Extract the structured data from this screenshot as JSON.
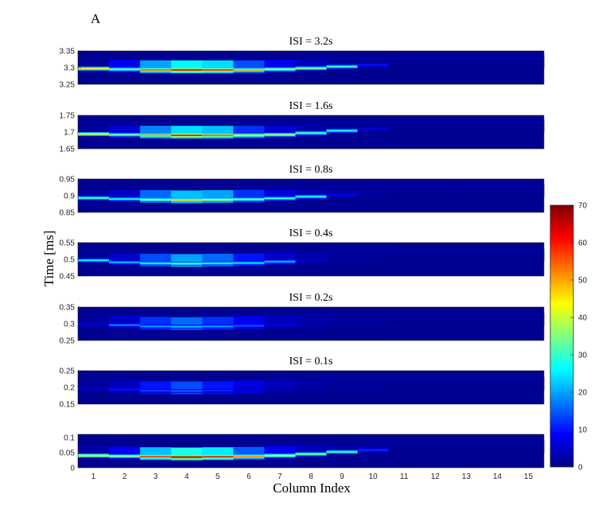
{
  "figure_label": "A",
  "chart_data": {
    "type": "heatmap",
    "xlabel": "Column Index",
    "ylabel": "Time [ms]",
    "columns": [
      1,
      2,
      3,
      4,
      5,
      6,
      7,
      8,
      9,
      10,
      11,
      12,
      13,
      14,
      15
    ],
    "colormap": "jet",
    "colorbar": {
      "min": 0,
      "max": 70,
      "ticks": [
        "0",
        "10",
        "20",
        "30",
        "40",
        "50",
        "60",
        "70"
      ]
    },
    "panels": [
      {
        "title": "ISI = 3.2s",
        "ylim": [
          3.25,
          3.35
        ],
        "yticks": [
          "3.35",
          "3.3",
          "3.25"
        ],
        "yticks_values": [
          3.35,
          3.3,
          3.25
        ],
        "peak_time": [
          3.297,
          3.295,
          3.293,
          3.293,
          3.293,
          3.293,
          3.295,
          3.298,
          3.303,
          3.308
        ],
        "peak": [
          45,
          35,
          55,
          65,
          60,
          50,
          40,
          35,
          30,
          10
        ],
        "halo": [
          2,
          8,
          20,
          26,
          24,
          14,
          8,
          4,
          2,
          2
        ]
      },
      {
        "title": "ISI = 1.6s",
        "ylim": [
          1.65,
          1.75
        ],
        "yticks": [
          "1.75",
          "1.7",
          "1.65"
        ],
        "yticks_values": [
          1.75,
          1.7,
          1.65
        ],
        "peak_time": [
          1.694,
          1.692,
          1.69,
          1.69,
          1.69,
          1.69,
          1.692,
          1.697,
          1.704,
          1.709
        ],
        "peak": [
          42,
          34,
          50,
          62,
          55,
          45,
          38,
          32,
          28,
          6
        ],
        "halo": [
          2,
          6,
          18,
          24,
          22,
          12,
          6,
          3,
          2,
          2
        ]
      },
      {
        "title": "ISI = 0.8s",
        "ylim": [
          0.85,
          0.95
        ],
        "yticks": [
          "0.95",
          "0.9",
          "0.85"
        ],
        "yticks_values": [
          0.95,
          0.9,
          0.85
        ],
        "peak_time": [
          0.893,
          0.89,
          0.888,
          0.887,
          0.888,
          0.889,
          0.892,
          0.897,
          0.902,
          0.906
        ],
        "peak": [
          32,
          28,
          38,
          48,
          42,
          35,
          30,
          28,
          8,
          3
        ],
        "halo": [
          2,
          5,
          16,
          22,
          20,
          12,
          6,
          3,
          2,
          2
        ]
      },
      {
        "title": "ISI = 0.4s",
        "ylim": [
          0.45,
          0.55
        ],
        "yticks": [
          "0.55",
          "0.5",
          "0.45"
        ],
        "yticks_values": [
          0.55,
          0.5,
          0.45
        ],
        "peak_time": [
          0.497,
          0.491,
          0.488,
          0.487,
          0.488,
          0.489,
          0.493,
          0.497,
          0.5,
          0.503
        ],
        "peak": [
          26,
          22,
          28,
          32,
          28,
          25,
          22,
          6,
          3,
          2
        ],
        "halo": [
          2,
          5,
          14,
          20,
          16,
          10,
          5,
          3,
          2,
          2
        ]
      },
      {
        "title": "ISI = 0.2s",
        "ylim": [
          0.25,
          0.35
        ],
        "yticks": [
          "0.35",
          "0.3",
          "0.25"
        ],
        "yticks_values": [
          0.35,
          0.3,
          0.25
        ],
        "peak_time": [
          0.298,
          0.296,
          0.292,
          0.291,
          0.292,
          0.294,
          0.297,
          0.299,
          0.3,
          0.302
        ],
        "peak": [
          6,
          18,
          20,
          22,
          20,
          15,
          8,
          4,
          3,
          2
        ],
        "halo": [
          2,
          5,
          12,
          16,
          12,
          8,
          4,
          3,
          2,
          2
        ]
      },
      {
        "title": "ISI = 0.1s",
        "ylim": [
          0.15,
          0.25
        ],
        "yticks": [
          "0.25",
          "0.2",
          "0.15"
        ],
        "yticks_values": [
          0.25,
          0.2,
          0.15
        ],
        "peak_time": [
          0.196,
          0.194,
          0.19,
          0.189,
          0.19,
          0.192,
          0.195,
          0.198,
          0.2,
          0.202
        ],
        "peak": [
          5,
          10,
          14,
          16,
          12,
          8,
          5,
          3,
          2,
          2
        ],
        "halo": [
          2,
          4,
          10,
          14,
          10,
          7,
          4,
          3,
          2,
          2
        ]
      },
      {
        "title": "",
        "ylim": [
          0,
          0.11
        ],
        "yticks": [
          "0.1",
          "0.05",
          "0"
        ],
        "yticks_values": [
          0.1,
          0.05,
          0
        ],
        "peak_time": [
          0.04,
          0.038,
          0.036,
          0.035,
          0.036,
          0.037,
          0.04,
          0.045,
          0.052,
          0.058
        ],
        "peak": [
          45,
          38,
          60,
          70,
          64,
          52,
          42,
          35,
          32,
          12
        ],
        "halo": [
          3,
          8,
          22,
          28,
          25,
          15,
          8,
          4,
          2,
          2
        ]
      }
    ]
  }
}
